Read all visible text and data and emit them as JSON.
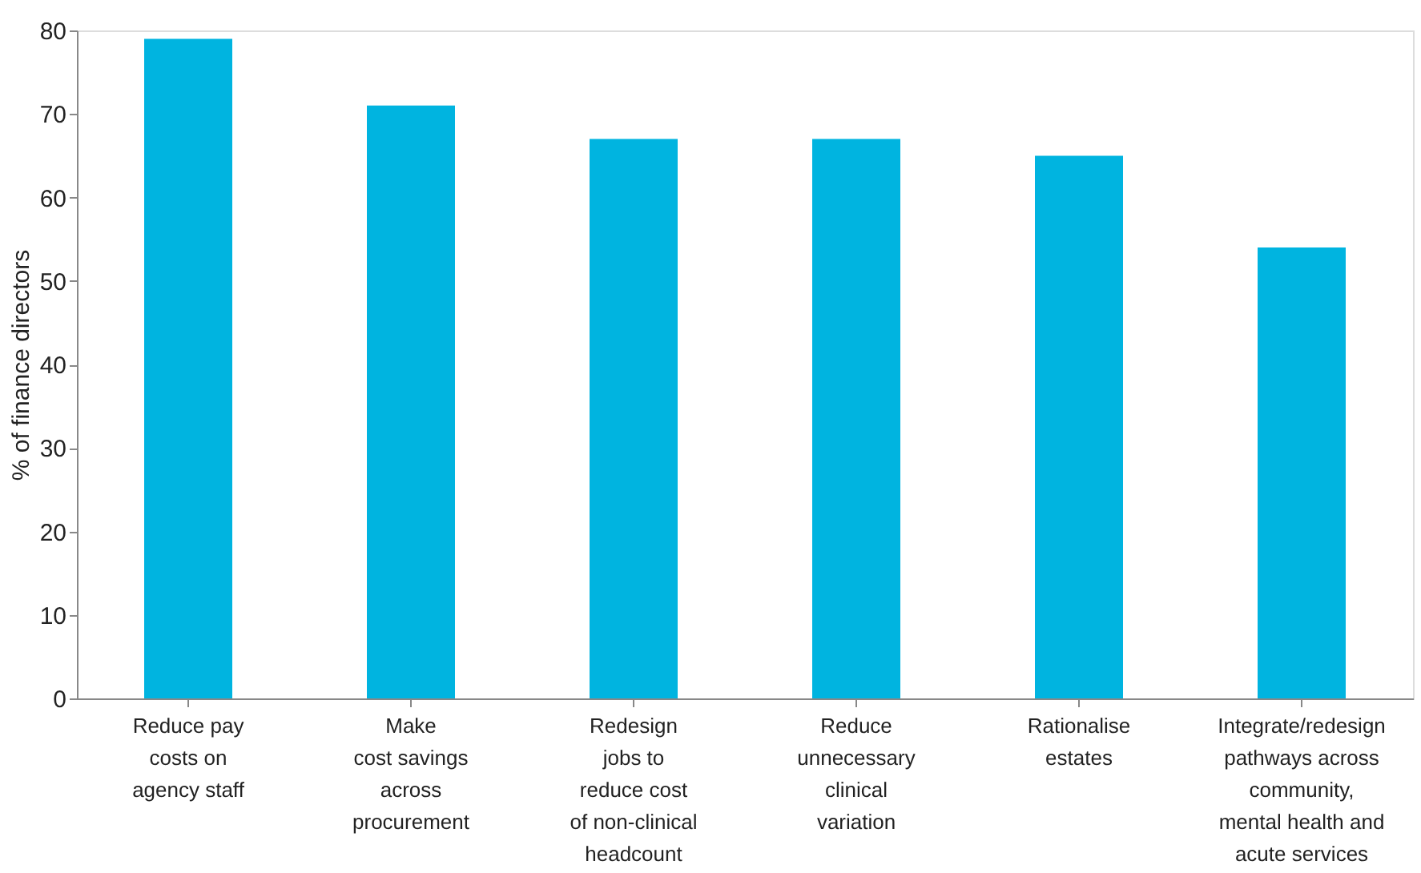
{
  "chart_data": {
    "type": "bar",
    "ylabel": "% of finance directors",
    "categories": [
      "Reduce pay\ncosts on\nagency staff",
      "Make\ncost savings\nacross\nprocurement",
      "Redesign\njobs to\nreduce cost\nof non-clinical\nheadcount",
      "Reduce\nunnecessary\nclinical\nvariation",
      "Rationalise\nestates",
      "Integrate/redesign\npathways across\ncommunity,\nmental health and\nacute services"
    ],
    "values": [
      79,
      71,
      67,
      67,
      65,
      54
    ],
    "color": "#00b4e0",
    "ylim": [
      0,
      80
    ],
    "yticks": [
      0,
      10,
      20,
      30,
      40,
      50,
      60,
      70,
      80
    ],
    "grid": false
  }
}
